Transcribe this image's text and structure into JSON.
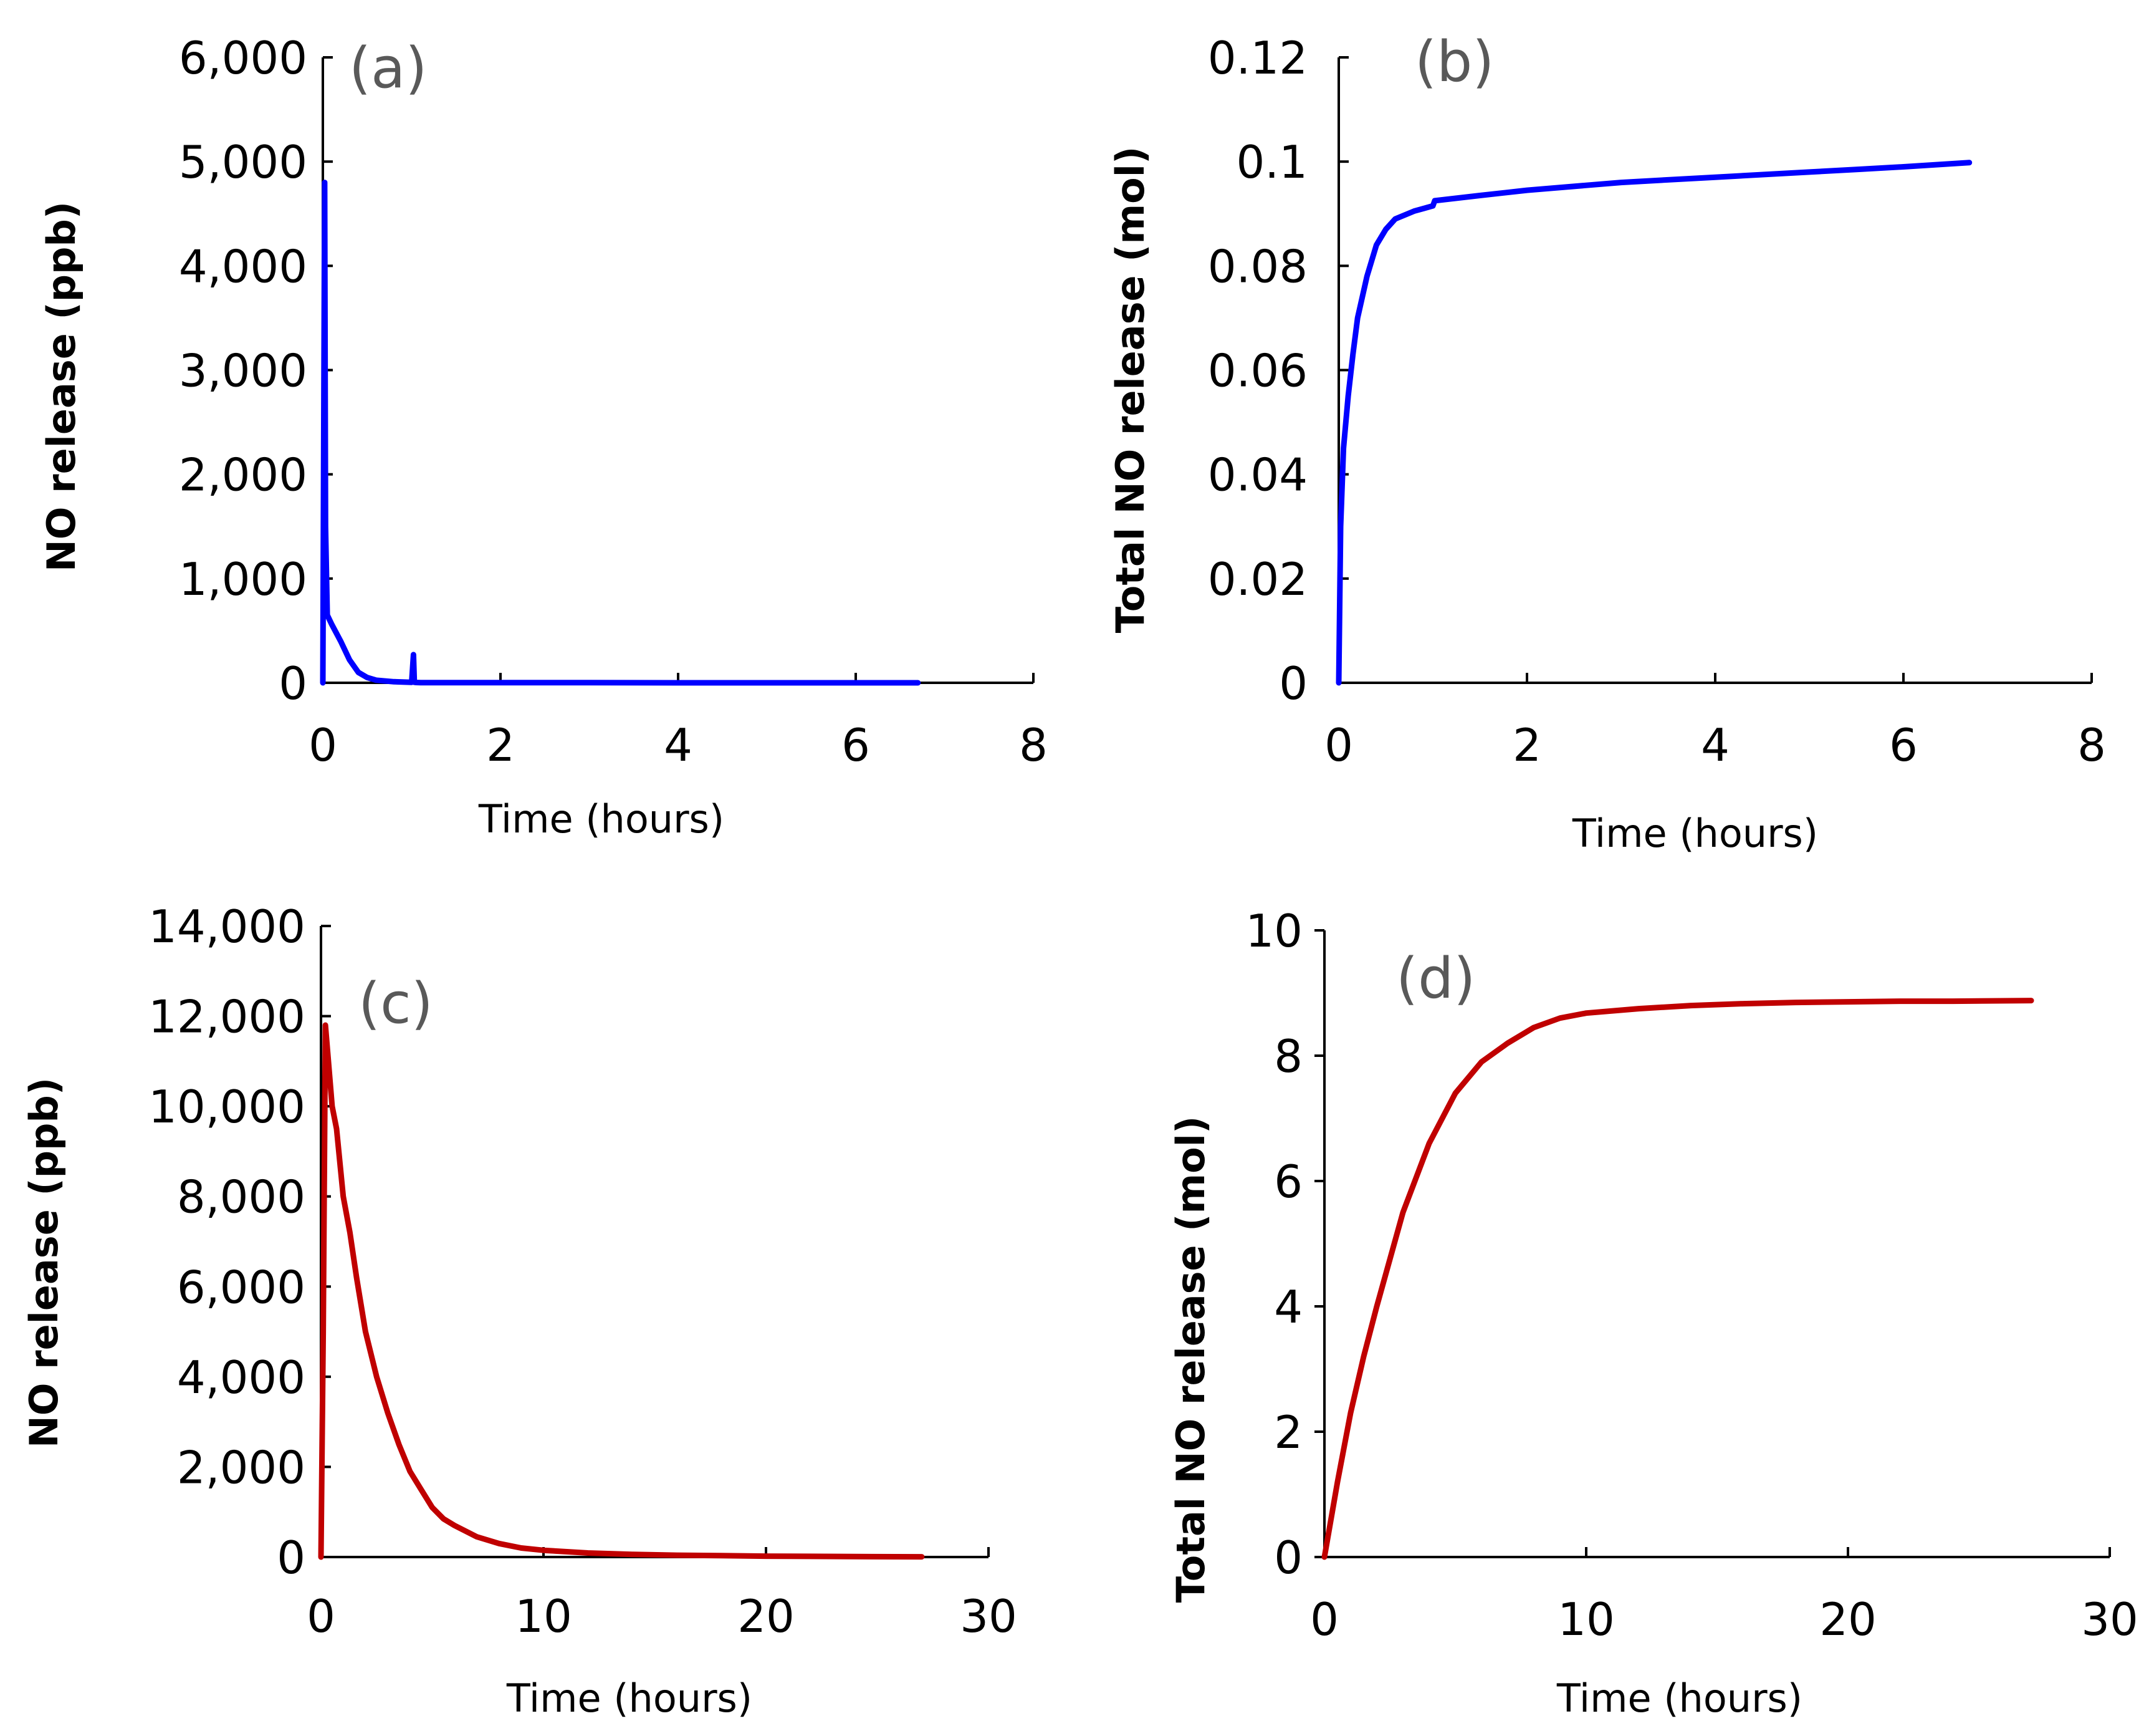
{
  "chart_data": [
    {
      "id": "a",
      "type": "line",
      "panel_label": "(a)",
      "xlabel": "Time (hours)",
      "ylabel": "NO release (ppb)",
      "xlim": [
        0,
        8
      ],
      "ylim": [
        0,
        6000
      ],
      "xticks": [
        0,
        2,
        4,
        6,
        8
      ],
      "yticks": [
        0,
        1000,
        2000,
        3000,
        4000,
        5000,
        6000
      ],
      "xtick_labels": [
        "0",
        "2",
        "4",
        "6",
        "8"
      ],
      "ytick_labels": [
        "0",
        "1,000",
        "2,000",
        "3,000",
        "4,000",
        "5,000",
        "6,000"
      ],
      "color": "#0000FF",
      "series": [
        {
          "name": "NO release",
          "x": [
            0,
            0.02,
            0.03,
            0.05,
            0.1,
            0.2,
            0.3,
            0.4,
            0.5,
            0.6,
            0.8,
            1.0,
            1.02,
            1.03,
            1.05,
            1.1,
            1.5,
            2,
            3,
            4,
            5,
            6,
            6.7
          ],
          "y": [
            0,
            4800,
            1500,
            650,
            560,
            400,
            220,
            100,
            50,
            25,
            10,
            5,
            270,
            5,
            3,
            2,
            2,
            1,
            1,
            0,
            0,
            0,
            0
          ]
        }
      ]
    },
    {
      "id": "b",
      "type": "line",
      "panel_label": "(b)",
      "xlabel": "Time (hours)",
      "ylabel": "Total NO release (mol)",
      "xlim": [
        0,
        8
      ],
      "ylim": [
        0,
        0.12
      ],
      "xticks": [
        0,
        2,
        4,
        6,
        8
      ],
      "yticks": [
        0,
        0.02,
        0.04,
        0.06,
        0.08,
        0.1,
        0.12
      ],
      "xtick_labels": [
        "0",
        "2",
        "4",
        "6",
        "8"
      ],
      "ytick_labels": [
        "0",
        "0.02",
        "0.04",
        "0.06",
        "0.08",
        "0.1",
        "0.12"
      ],
      "color": "#0000FF",
      "series": [
        {
          "name": "Total NO release",
          "x": [
            0,
            0.02,
            0.05,
            0.1,
            0.15,
            0.2,
            0.3,
            0.4,
            0.5,
            0.6,
            0.8,
            1.0,
            1.02,
            1.5,
            2,
            3,
            4,
            5,
            5.5,
            6,
            6.7
          ],
          "y": [
            0,
            0.03,
            0.045,
            0.055,
            0.063,
            0.07,
            0.078,
            0.084,
            0.087,
            0.089,
            0.0905,
            0.0915,
            0.0925,
            0.0935,
            0.0945,
            0.096,
            0.097,
            0.098,
            0.0985,
            0.099,
            0.0998
          ]
        }
      ]
    },
    {
      "id": "c",
      "type": "line",
      "panel_label": "(c)",
      "xlabel": "Time (hours)",
      "ylabel": "NO release (ppb)",
      "xlim": [
        0,
        30
      ],
      "ylim": [
        0,
        14000
      ],
      "xticks": [
        0,
        10,
        20,
        30
      ],
      "yticks": [
        0,
        2000,
        4000,
        6000,
        8000,
        10000,
        12000,
        14000
      ],
      "xtick_labels": [
        "0",
        "10",
        "20",
        "30"
      ],
      "ytick_labels": [
        "0",
        "2,000",
        "4,000",
        "6,000",
        "8,000",
        "10,000",
        "12,000",
        "14,000"
      ],
      "color": "#C00000",
      "series": [
        {
          "name": "NO release",
          "x": [
            0,
            0.1,
            0.2,
            0.3,
            0.5,
            0.7,
            1.0,
            1.3,
            1.6,
            2.0,
            2.5,
            3.0,
            3.5,
            4.0,
            4.5,
            5.0,
            5.5,
            6,
            7,
            8,
            9,
            10,
            12,
            14,
            16,
            18,
            20,
            22,
            24,
            27
          ],
          "y": [
            0,
            5000,
            11800,
            11200,
            10000,
            9500,
            8000,
            7200,
            6200,
            5000,
            4000,
            3200,
            2500,
            1900,
            1500,
            1100,
            850,
            700,
            450,
            300,
            200,
            150,
            90,
            60,
            40,
            30,
            20,
            15,
            10,
            5
          ]
        }
      ]
    },
    {
      "id": "d",
      "type": "line",
      "panel_label": "(d)",
      "xlabel": "Time (hours)",
      "ylabel": "Total NO release (mol)",
      "xlim": [
        0,
        30
      ],
      "ylim": [
        0,
        10
      ],
      "xticks": [
        0,
        10,
        20,
        30
      ],
      "yticks": [
        0,
        2,
        4,
        6,
        8,
        10
      ],
      "xtick_labels": [
        "0",
        "10",
        "20",
        "30"
      ],
      "ytick_labels": [
        "0",
        "2",
        "4",
        "6",
        "8",
        "10"
      ],
      "color": "#C00000",
      "series": [
        {
          "name": "Total NO release",
          "x": [
            0,
            0.5,
            1,
            1.5,
            2,
            3,
            4,
            5,
            6,
            7,
            8,
            9,
            10,
            12,
            14,
            16,
            18,
            20,
            22,
            24,
            27
          ],
          "y": [
            0,
            1.2,
            2.3,
            3.2,
            4.0,
            5.5,
            6.6,
            7.4,
            7.9,
            8.2,
            8.45,
            8.6,
            8.68,
            8.75,
            8.8,
            8.83,
            8.85,
            8.86,
            8.87,
            8.87,
            8.88
          ]
        }
      ]
    }
  ]
}
